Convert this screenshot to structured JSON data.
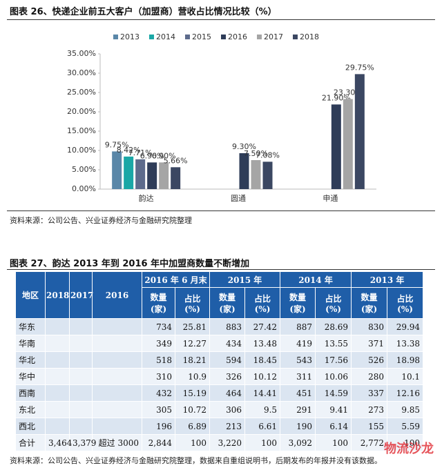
{
  "figure26": {
    "title": "图表 26、快递企业前五大客户（加盟商）营收占比情况比较（%）"
  },
  "chart_data": {
    "type": "bar",
    "categories": [
      "韵达",
      "圆通",
      "申通"
    ],
    "series": [
      {
        "name": "2013",
        "color": "#5a87a8",
        "values": [
          9.75,
          null,
          null
        ],
        "value_labels": [
          "9.75%",
          null,
          null
        ]
      },
      {
        "name": "2014",
        "color": "#1aa7a6",
        "values": [
          8.42,
          null,
          null
        ],
        "value_labels": [
          "8.42%",
          null,
          null
        ]
      },
      {
        "name": "2015",
        "color": "#5d6b8c",
        "values": [
          7.71,
          null,
          null
        ],
        "value_labels": [
          "7.71%",
          null,
          null
        ]
      },
      {
        "name": "2016",
        "color": "#2e3c58",
        "values": [
          6.9,
          9.3,
          21.9
        ],
        "value_labels": [
          "6.90%",
          "9.30%",
          "21.90%"
        ]
      },
      {
        "name": "2017",
        "color": "#a5a5a5",
        "values": [
          6.9,
          7.5,
          23.3
        ],
        "value_labels": [
          "6.90%",
          "7.50%",
          "23.30%"
        ]
      },
      {
        "name": "2018",
        "color": "#3b4762",
        "values": [
          5.66,
          7.08,
          29.75
        ],
        "value_labels": [
          "5.66%",
          "7.08%",
          "29.75%"
        ]
      }
    ],
    "ylim": [
      0,
      35
    ],
    "yticks": [
      {
        "value": 0,
        "label": "0.00%"
      },
      {
        "value": 5,
        "label": "5.00%"
      },
      {
        "value": 10,
        "label": "10.00%"
      },
      {
        "value": 15,
        "label": "15.00%"
      },
      {
        "value": 20,
        "label": "20.00%"
      },
      {
        "value": 25,
        "label": "25.00%"
      },
      {
        "value": 30,
        "label": "30.00%"
      },
      {
        "value": 35,
        "label": "35.00%"
      }
    ],
    "legend": "top"
  },
  "source1": "资料来源：公司公告、兴业证券经济与金融研究院整理",
  "figure27": {
    "title": "图表 27、韵达 2013 年到 2016 年中加盟商数量不断增加"
  },
  "table": {
    "group_headers": [
      "地区",
      "2018",
      "2017",
      "2016",
      "2016 年 6 月末",
      "2015 年",
      "2014 年",
      "2013 年"
    ],
    "sub_headers": [
      "数量 (家)",
      "占比 (%)",
      "数量 (家)",
      "占比 (%)",
      "数量 (家)",
      "占比 (%)",
      "数量 (家)",
      "占比 (%)"
    ],
    "rows": [
      [
        "华东",
        null,
        null,
        null,
        "734",
        "25.81",
        "883",
        "27.42",
        "887",
        "28.69",
        "830",
        "29.94"
      ],
      [
        "华南",
        null,
        null,
        null,
        "349",
        "12.27",
        "434",
        "13.48",
        "419",
        "13.55",
        "371",
        "13.38"
      ],
      [
        "华北",
        null,
        null,
        null,
        "518",
        "18.21",
        "594",
        "18.45",
        "543",
        "17.56",
        "526",
        "18.98"
      ],
      [
        "华中",
        null,
        null,
        null,
        "310",
        "10.9",
        "326",
        "10.12",
        "311",
        "10.06",
        "280",
        "10.1"
      ],
      [
        "西南",
        null,
        null,
        null,
        "432",
        "15.19",
        "464",
        "14.41",
        "451",
        "14.59",
        "337",
        "12.16"
      ],
      [
        "东北",
        null,
        null,
        null,
        "305",
        "10.72",
        "306",
        "9.5",
        "291",
        "9.41",
        "273",
        "9.85"
      ],
      [
        "西北",
        null,
        null,
        null,
        "196",
        "6.89",
        "213",
        "6.61",
        "190",
        "6.14",
        "155",
        "5.59"
      ],
      [
        "合计",
        "3,464",
        "3,379",
        "超过 3000",
        "2,844",
        "100",
        "3,220",
        "100",
        "3,092",
        "100",
        "2,772",
        "100"
      ]
    ]
  },
  "source2": "资料来源：公司公告、兴业证券经济与金融研究院整理，数据来自重组说明书，后期发布的年报并没有该数据。",
  "watermark": "物流沙龙"
}
